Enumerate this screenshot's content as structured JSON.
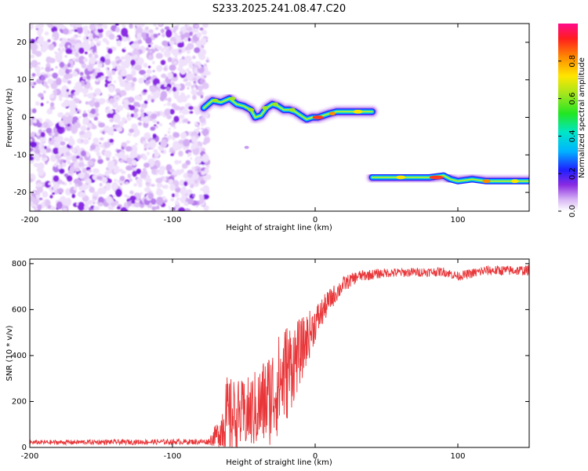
{
  "title": "S233.2025.241.08.47.C20",
  "chart_data": [
    {
      "type": "heatmap",
      "xlabel": "Height of straight line (km)",
      "ylabel": "Frequency (Hz)",
      "xlim": [
        -200,
        150
      ],
      "ylim": [
        -25,
        25
      ],
      "x_ticks": [
        -200,
        -100,
        0,
        100
      ],
      "y_ticks": [
        -20,
        -10,
        0,
        10,
        20
      ],
      "noise_region_x": [
        -200,
        -75
      ],
      "trace": [
        {
          "x": -78,
          "y": 2.5
        },
        {
          "x": -72,
          "y": 4.5
        },
        {
          "x": -66,
          "y": 4.0
        },
        {
          "x": -60,
          "y": 5.0
        },
        {
          "x": -55,
          "y": 3.5
        },
        {
          "x": -50,
          "y": 3.0
        },
        {
          "x": -45,
          "y": 2.0
        },
        {
          "x": -42,
          "y": 0.0
        },
        {
          "x": -38,
          "y": 0.5
        },
        {
          "x": -34,
          "y": 2.5
        },
        {
          "x": -30,
          "y": 3.5
        },
        {
          "x": -26,
          "y": 3.0
        },
        {
          "x": -22,
          "y": 2.0
        },
        {
          "x": -18,
          "y": 2.0
        },
        {
          "x": -14,
          "y": 1.5
        },
        {
          "x": -10,
          "y": 0.5
        },
        {
          "x": -6,
          "y": -0.5
        },
        {
          "x": -2,
          "y": 0.0
        },
        {
          "x": 2,
          "y": 0.0
        },
        {
          "x": 6,
          "y": 0.5
        },
        {
          "x": 10,
          "y": 1.0
        },
        {
          "x": 15,
          "y": 1.5
        },
        {
          "x": 20,
          "y": 1.5
        },
        {
          "x": 30,
          "y": 1.5
        },
        {
          "x": 40,
          "y": 1.5
        }
      ],
      "trace2": [
        {
          "x": 40,
          "y": -16
        },
        {
          "x": 60,
          "y": -16
        },
        {
          "x": 80,
          "y": -16
        },
        {
          "x": 90,
          "y": -15.5
        },
        {
          "x": 95,
          "y": -16.5
        },
        {
          "x": 100,
          "y": -17
        },
        {
          "x": 110,
          "y": -16.5
        },
        {
          "x": 120,
          "y": -17
        },
        {
          "x": 135,
          "y": -17
        },
        {
          "x": 150,
          "y": -17
        }
      ]
    },
    {
      "type": "colorbar",
      "label": "Normalized spectral amplitude",
      "range": [
        0,
        1
      ],
      "ticks": [
        "0.0",
        "0.2",
        "0.4",
        "0.6",
        "0.8"
      ]
    },
    {
      "type": "line",
      "xlabel": "Height of straight line (km)",
      "ylabel": "SNR (10 * v/v)",
      "xlim": [
        -200,
        150
      ],
      "ylim": [
        0,
        820
      ],
      "x_ticks": [
        -200,
        -100,
        0,
        100
      ],
      "y_ticks": [
        0,
        200,
        400,
        600,
        800
      ],
      "color": "#e8373a",
      "series": [
        {
          "name": "SNR",
          "envelope": [
            {
              "x": -200,
              "mean": 22,
              "jitter": 10
            },
            {
              "x": -75,
              "mean": 25,
              "jitter": 12
            },
            {
              "x": -68,
              "mean": 60,
              "jitter": 60
            },
            {
              "x": -62,
              "mean": 130,
              "jitter": 180
            },
            {
              "x": -50,
              "mean": 140,
              "jitter": 150
            },
            {
              "x": -40,
              "mean": 170,
              "jitter": 180
            },
            {
              "x": -30,
              "mean": 230,
              "jitter": 220
            },
            {
              "x": -20,
              "mean": 330,
              "jitter": 220
            },
            {
              "x": -10,
              "mean": 420,
              "jitter": 140
            },
            {
              "x": 0,
              "mean": 540,
              "jitter": 80
            },
            {
              "x": 10,
              "mean": 640,
              "jitter": 50
            },
            {
              "x": 20,
              "mean": 710,
              "jitter": 35
            },
            {
              "x": 30,
              "mean": 745,
              "jitter": 25
            },
            {
              "x": 50,
              "mean": 760,
              "jitter": 20
            },
            {
              "x": 90,
              "mean": 765,
              "jitter": 20
            },
            {
              "x": 100,
              "mean": 745,
              "jitter": 20
            },
            {
              "x": 120,
              "mean": 770,
              "jitter": 22
            },
            {
              "x": 150,
              "mean": 770,
              "jitter": 22
            }
          ]
        }
      ]
    }
  ]
}
